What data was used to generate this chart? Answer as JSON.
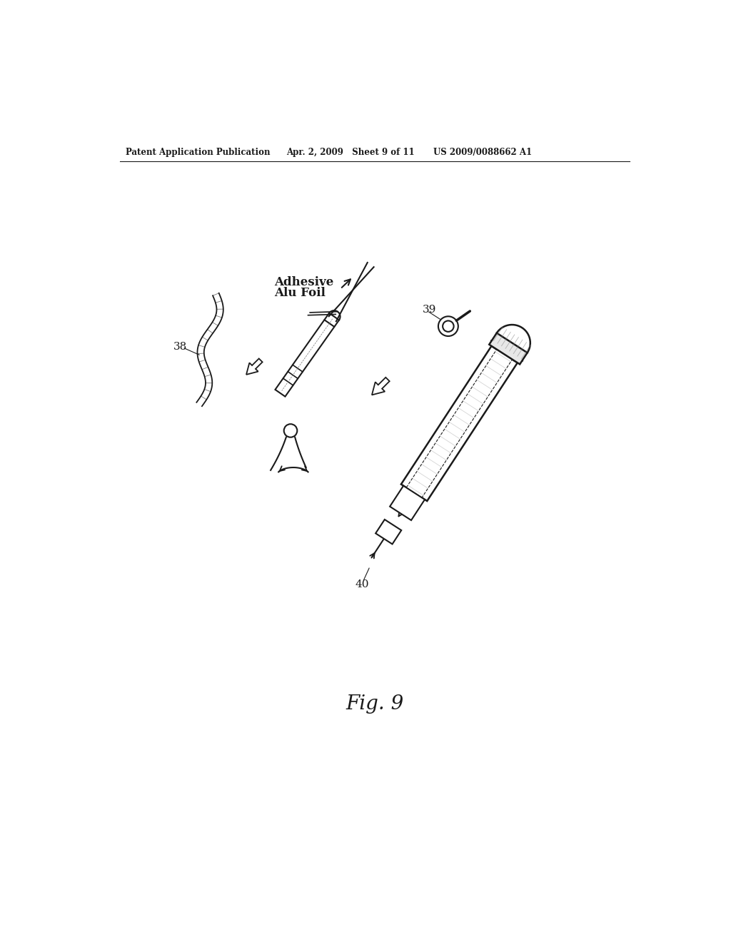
{
  "bg_color": "#ffffff",
  "header_left": "Patent Application Publication",
  "header_mid": "Apr. 2, 2009   Sheet 9 of 11",
  "header_right": "US 2009/0088662 A1",
  "fig_label": "Fig. 9",
  "label_38": "38",
  "label_39": "39",
  "label_40": "40",
  "adhesive_text_line1": "Adhesive",
  "adhesive_text_line2": "Alu Foil",
  "col": "#1a1a1a"
}
